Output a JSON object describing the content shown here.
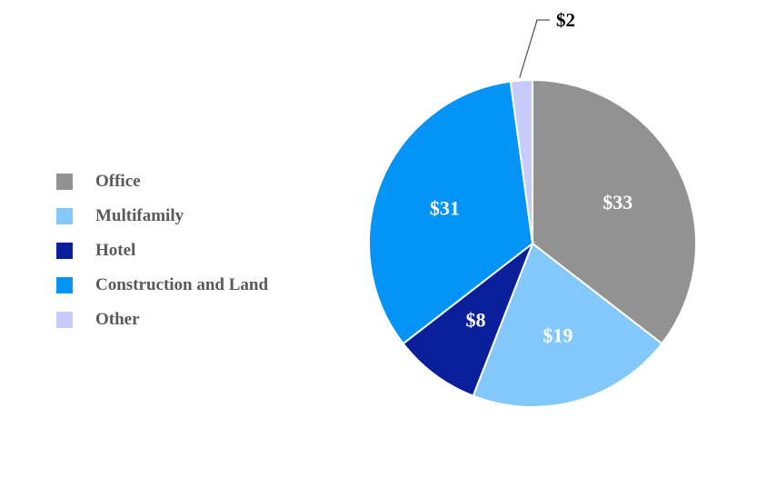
{
  "chart_data": {
    "type": "pie",
    "categories": [
      "Office",
      "Multifamily",
      "Hotel",
      "Construction and Land",
      "Other"
    ],
    "values": [
      33,
      19,
      8,
      31,
      2
    ],
    "data_labels": [
      "$33",
      "$19",
      "$8",
      "$31",
      "$2"
    ],
    "colors": [
      "#929292",
      "#82C8FB",
      "#0B1F9A",
      "#0494F7",
      "#C7CBF9"
    ],
    "legend_position": "left"
  }
}
